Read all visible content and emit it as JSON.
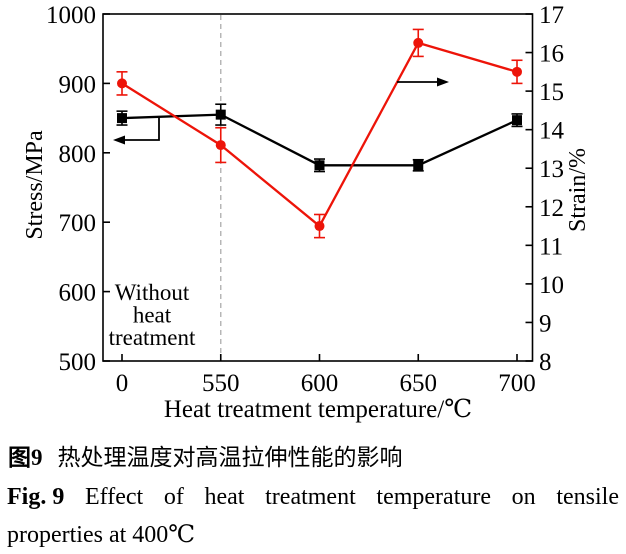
{
  "figure": {
    "caption_zh_label": "图9",
    "caption_zh_text": "热处理温度对高温拉伸性能的影响",
    "caption_en_label": "Fig. 9",
    "caption_en_text": "Effect of heat treatment temperature on tensile",
    "caption_en_line2": "properties at 400℃"
  },
  "chart_data": {
    "type": "line",
    "categories": [
      "0",
      "550",
      "600",
      "650",
      "700"
    ],
    "xlabel": "Heat treatment temperature/℃",
    "ylabel_left": "Stress/MPa",
    "ylabel_right": "Strain/%",
    "ylim_left": [
      500,
      1000
    ],
    "ylim_right": [
      8,
      17
    ],
    "yticks_left": [
      500,
      600,
      700,
      800,
      900,
      1000
    ],
    "yticks_right": [
      8,
      9,
      10,
      11,
      12,
      13,
      14,
      15,
      16,
      17
    ],
    "grid": false,
    "legend": "none (arrows point each curve to its axis)",
    "series": [
      {
        "name": "Stress/MPa",
        "axis": "left",
        "color": "#000000",
        "marker": "square",
        "values": [
          850,
          855,
          782,
          782,
          847
        ],
        "errors": [
          10,
          15,
          9,
          8,
          9
        ]
      },
      {
        "name": "Strain/%",
        "axis": "right",
        "color": "#ed1409",
        "marker": "circle",
        "values": [
          15.2,
          13.6,
          11.5,
          16.25,
          15.5
        ],
        "errors": [
          0.3,
          0.45,
          0.3,
          0.35,
          0.3
        ]
      }
    ],
    "annotation_lines": [
      "Without",
      "heat",
      "treatment"
    ],
    "dashed_line_at_category": "550",
    "dashed_line_color": "#b3b3b3",
    "arrows": [
      {
        "series": "Stress/MPa",
        "direction": "left"
      },
      {
        "series": "Strain/%",
        "direction": "right"
      }
    ]
  }
}
